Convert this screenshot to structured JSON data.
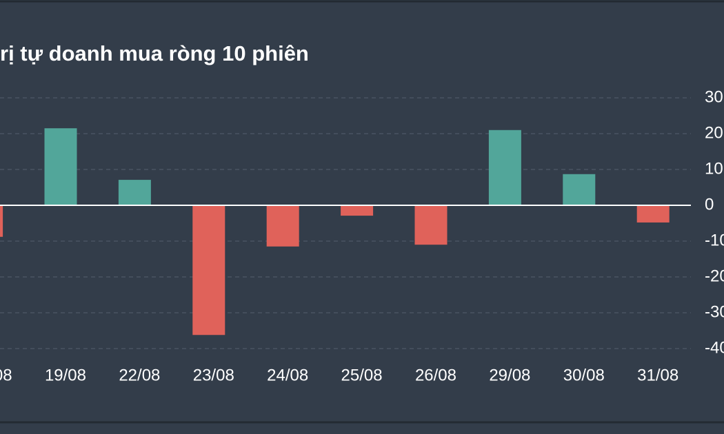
{
  "chart_data": {
    "type": "bar",
    "title": "rị tự doanh mua ròng 10 phiên",
    "categories": [
      "08",
      "19/08",
      "22/08",
      "23/08",
      "24/08",
      "25/08",
      "26/08",
      "29/08",
      "30/08",
      "31/08"
    ],
    "values": [
      -8.8,
      21.5,
      7.1,
      -36.2,
      -11.5,
      -2.9,
      -11.0,
      21.0,
      8.7,
      -4.8
    ],
    "up_color": "#52a69a",
    "down_color": "#e0625a",
    "ylim": [
      -40,
      30
    ],
    "yticks": [
      -40,
      -30,
      -20,
      -10,
      0,
      10,
      20,
      30
    ],
    "grid": true
  }
}
